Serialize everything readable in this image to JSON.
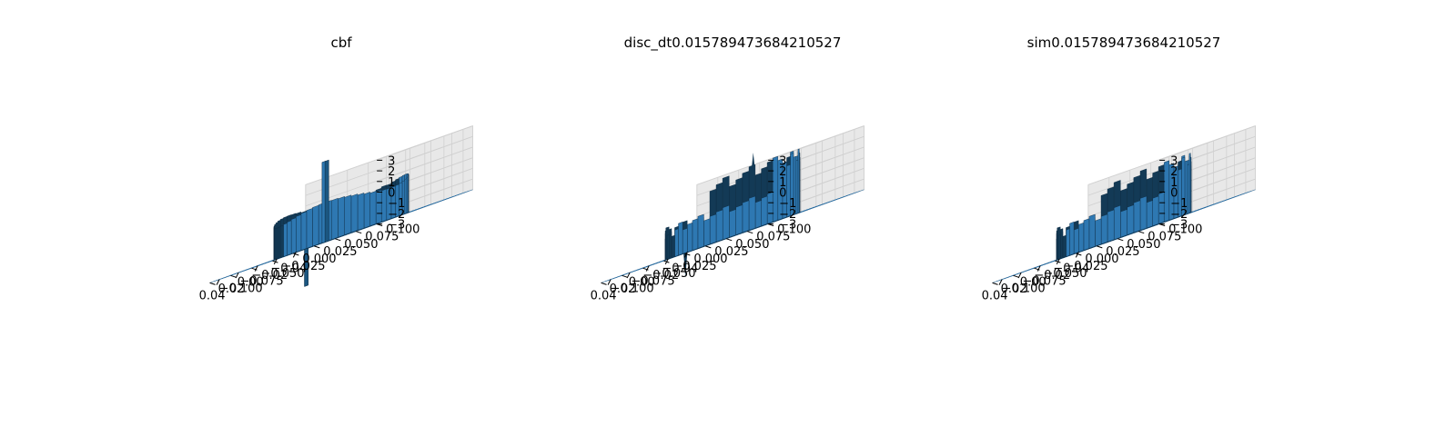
{
  "chart_data": [
    {
      "type": "surface3d",
      "title": "cbf",
      "xlabel": "",
      "ylabel": "",
      "zlabel": "",
      "x_ticks": [
        "−0.04",
        "−0.02",
        "0.00",
        "0.02",
        "0.04"
      ],
      "y_ticks": [
        "−0.100",
        "−0.075",
        "−0.050",
        "−0.025",
        "0.000",
        "0.025",
        "0.050",
        "0.075",
        "0.100"
      ],
      "z_ticks": [
        "−3",
        "−2",
        "−1",
        "0",
        "1",
        "2",
        "3"
      ],
      "xlim": [
        -0.05,
        0.05
      ],
      "ylim": [
        -0.1,
        0.1
      ],
      "zlim": [
        -3,
        3
      ],
      "grid": true,
      "surface": "flat plane at z≈-3 with a ring-shaped wall (height ≈0) around the origin and singular spikes beyond the z-limits near x≈0.02",
      "color": "#1f77b4",
      "shape": "cbf"
    },
    {
      "type": "surface3d",
      "title": "disc_dt0.015789473684210527",
      "xlabel": "",
      "ylabel": "",
      "zlabel": "",
      "x_ticks": [
        "−0.04",
        "−0.02",
        "0.00",
        "0.02",
        "0.04"
      ],
      "y_ticks": [
        "−0.100",
        "−0.075",
        "−0.050",
        "−0.025",
        "0.000",
        "0.025",
        "0.050",
        "0.075",
        "0.100"
      ],
      "z_ticks": [
        "−3",
        "−2",
        "−1",
        "0",
        "1",
        "2",
        "3"
      ],
      "xlim": [
        -0.05,
        0.05
      ],
      "ylim": [
        -0.1,
        0.1
      ],
      "zlim": [
        -3,
        3
      ],
      "grid": true,
      "surface": "flat plane at z≈-3 with a jagged partial ring wall and a tall jagged wall reaching z≈2–3",
      "color": "#1f77b4",
      "shape": "disc"
    },
    {
      "type": "surface3d",
      "title": "sim0.015789473684210527",
      "xlabel": "",
      "ylabel": "",
      "zlabel": "",
      "x_ticks": [
        "−0.04",
        "−0.02",
        "0.00",
        "0.02",
        "0.04"
      ],
      "y_ticks": [
        "−0.100",
        "−0.075",
        "−0.050",
        "−0.025",
        "0.000",
        "0.025",
        "0.050",
        "0.075",
        "0.100"
      ],
      "z_ticks": [
        "−3",
        "−2",
        "−1",
        "0",
        "1",
        "2",
        "3"
      ],
      "xlim": [
        -0.05,
        0.05
      ],
      "ylim": [
        -0.1,
        0.1
      ],
      "zlim": [
        -3,
        3
      ],
      "grid": true,
      "surface": "flat plane at z≈-3 with a jagged partial ring wall and a tall jagged wall reaching z≈2–3",
      "color": "#1f77b4",
      "shape": "sim"
    }
  ]
}
